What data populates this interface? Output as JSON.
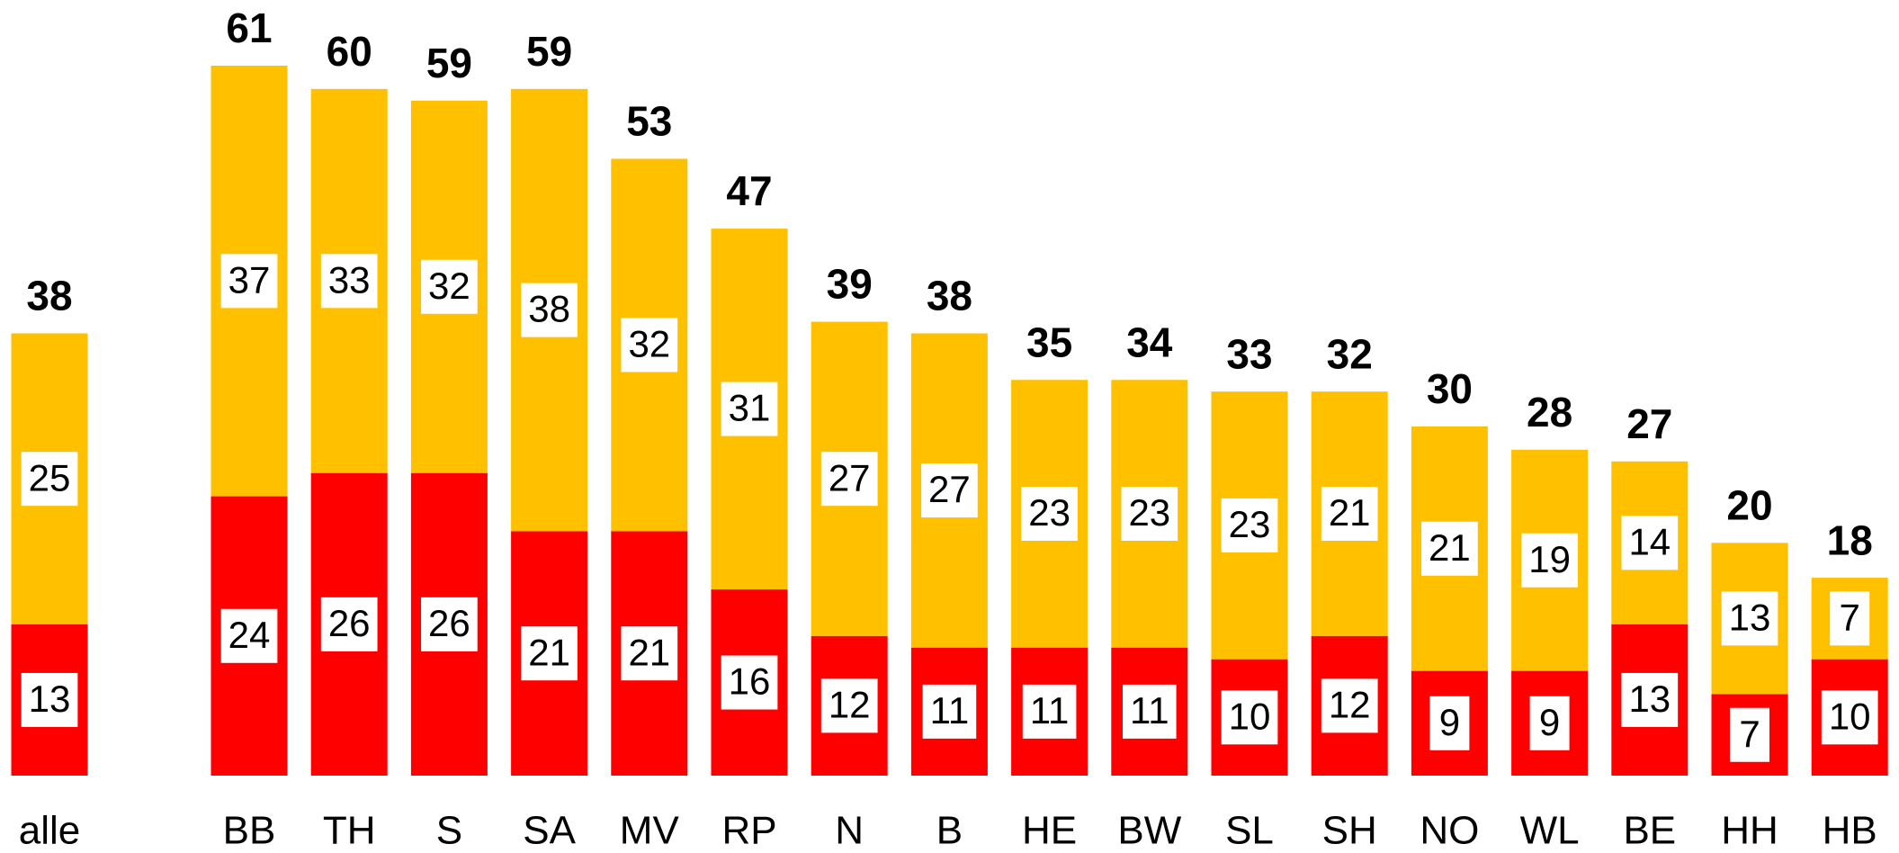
{
  "chart_data": {
    "type": "stacked-bar",
    "categories": [
      "alle",
      "BB",
      "TH",
      "S",
      "SA",
      "MV",
      "RP",
      "N",
      "B",
      "HE",
      "BW",
      "SL",
      "SH",
      "NO",
      "WL",
      "BE",
      "HH",
      "HB"
    ],
    "series": [
      {
        "color": "#ff0000",
        "values": [
          13,
          24,
          26,
          26,
          21,
          21,
          16,
          12,
          11,
          11,
          11,
          10,
          12,
          9,
          9,
          13,
          7,
          10
        ]
      },
      {
        "color": "#ffc000",
        "values": [
          25,
          37,
          33,
          32,
          38,
          32,
          31,
          27,
          27,
          23,
          23,
          23,
          21,
          21,
          19,
          14,
          13,
          7
        ]
      }
    ],
    "totals": [
      38,
      61,
      60,
      59,
      59,
      53,
      47,
      39,
      38,
      35,
      34,
      33,
      32,
      30,
      28,
      27,
      20,
      18
    ]
  }
}
